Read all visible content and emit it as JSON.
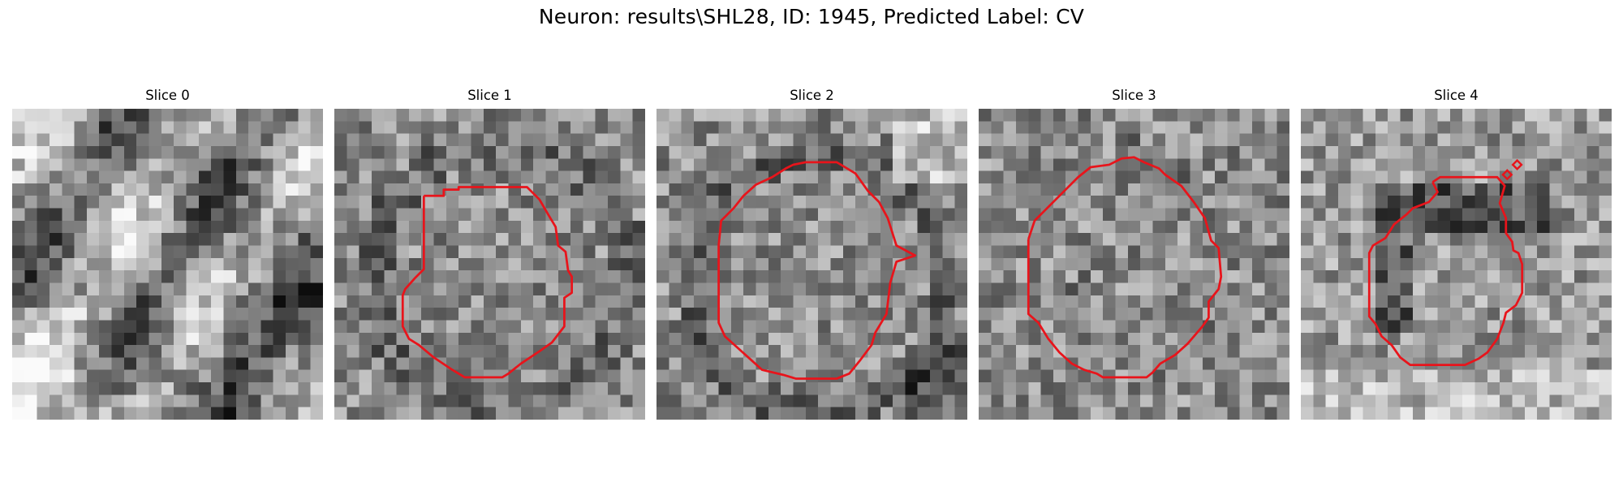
{
  "figure": {
    "title": "Neuron: results\\SHL28, ID: 1945, Predicted Label: CV"
  },
  "slices": [
    {
      "label": "Slice 0",
      "has_contour": false
    },
    {
      "label": "Slice 1",
      "has_contour": true
    },
    {
      "label": "Slice 2",
      "has_contour": true
    },
    {
      "label": "Slice 3",
      "has_contour": true
    },
    {
      "label": "Slice 4",
      "has_contour": true
    }
  ],
  "colors": {
    "contour": "#e8141b",
    "background": "#ffffff"
  }
}
